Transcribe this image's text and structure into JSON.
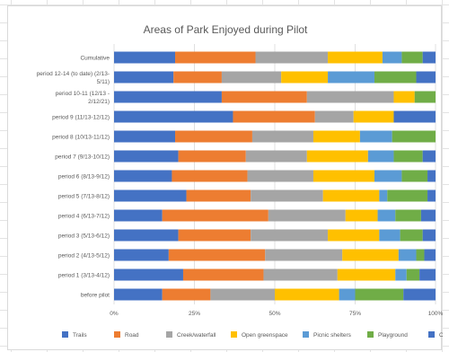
{
  "chart_data": {
    "type": "bar",
    "orientation": "horizontal",
    "stacked": "percent",
    "title": "Areas of Park Enjoyed during Pilot",
    "xlim": [
      0,
      100
    ],
    "x_ticks": [
      "0%",
      "25%",
      "50%",
      "75%",
      "100%"
    ],
    "grid": true,
    "legend_position": "bottom",
    "categories": [
      [
        "Cumulative"
      ],
      [
        "period 12-14 (to date) (2/13-",
        "5/11)"
      ],
      [
        "period 10-11 (12/13 -",
        "2/12/21)"
      ],
      [
        "period 9 (11/13-12/12)"
      ],
      [
        "period 8 (10/13-11/12)"
      ],
      [
        "period 7 (9/13-10/12)"
      ],
      [
        "period 6 (8/13-9/12)"
      ],
      [
        "period 5 (7/13-8/12)"
      ],
      [
        "period 4 (6/13-7/12)"
      ],
      [
        "period 3 (5/13-6/12)"
      ],
      [
        "period 2 (4/13-5/12)"
      ],
      [
        "period 1 (3/13-4/12)"
      ],
      [
        "before pilot"
      ]
    ],
    "series": [
      {
        "name": "Trails",
        "color": "#4472C4",
        "values": [
          19,
          18.5,
          33.5,
          37,
          19,
          20,
          18,
          22.5,
          15,
          20,
          17,
          21.5,
          15
        ]
      },
      {
        "name": "Road",
        "color": "#ED7D31",
        "values": [
          25,
          15,
          26.5,
          25.5,
          24,
          21,
          23.5,
          20,
          33,
          22.5,
          30,
          25,
          15
        ]
      },
      {
        "name": "Creek/waterfall",
        "color": "#A5A5A5",
        "values": [
          22.5,
          18.5,
          27,
          12,
          19,
          19,
          20.5,
          22.5,
          24,
          24,
          24,
          23,
          20
        ]
      },
      {
        "name": "Open greenspace",
        "color": "#FFC000",
        "values": [
          17,
          14.5,
          6.5,
          12.5,
          14.5,
          19,
          19,
          17.5,
          10,
          16,
          17.5,
          18,
          20
        ]
      },
      {
        "name": "Picnic shelters",
        "color": "#5B9BD5",
        "values": [
          6,
          14.5,
          0,
          0,
          10,
          8,
          8.5,
          2.5,
          5.5,
          6.5,
          5.5,
          3.5,
          5
        ]
      },
      {
        "name": "Playground",
        "color": "#70AD47",
        "values": [
          6.5,
          13,
          6.5,
          0,
          13.5,
          9,
          8,
          12.5,
          8,
          7,
          2.5,
          4,
          15
        ]
      },
      {
        "name": "Other",
        "color": "#4472C4",
        "values": [
          4,
          6,
          0,
          13,
          0,
          4,
          2.5,
          2.5,
          4.5,
          4,
          3.5,
          5,
          10
        ]
      }
    ]
  }
}
